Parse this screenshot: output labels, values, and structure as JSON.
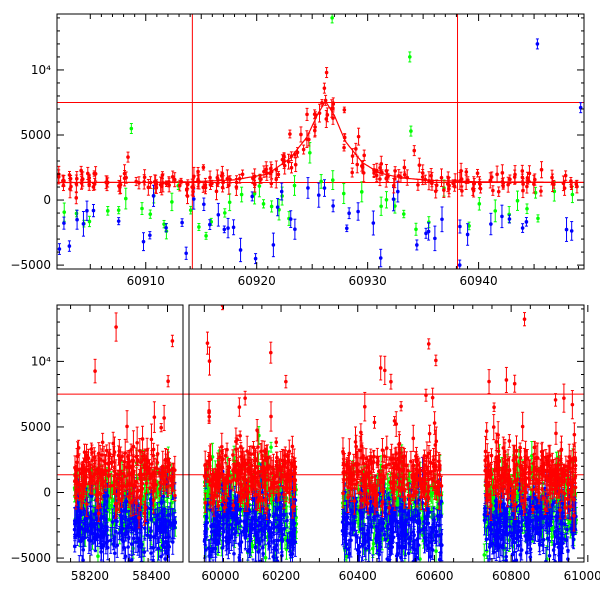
{
  "chart_data": [
    {
      "type": "scatter",
      "panel": "top",
      "title": "",
      "xlabel": "",
      "ylabel": "",
      "xlim": [
        60902,
        60949.5
      ],
      "ylim": [
        -5300,
        14300
      ],
      "x_ticks": [
        60910,
        60920,
        60930,
        60940
      ],
      "x_tick_labels": [
        "60910",
        "60920",
        "60930",
        "60940"
      ],
      "y_ticks": [
        -5000,
        0,
        5000,
        10000
      ],
      "y_tick_labels": [
        "−5000",
        "0",
        "5000",
        "10⁴"
      ],
      "reference_lines": {
        "horizontal": [
          7500,
          1350
        ],
        "vertical": [
          60914.2,
          60938.1
        ]
      },
      "model_curve": {
        "name": "red model",
        "x": [
          60902,
          60910,
          60914,
          60918,
          60921,
          60923,
          60924.5,
          60925.5,
          60926.2,
          60927,
          60928,
          60929.5,
          60931,
          60933,
          60936,
          60940,
          60949.5
        ],
        "y": [
          1350,
          1360,
          1400,
          1550,
          2000,
          3200,
          4800,
          6600,
          7600,
          6500,
          4500,
          2900,
          2100,
          1700,
          1500,
          1400,
          1360
        ]
      },
      "series": [
        {
          "name": "red",
          "color": "#ff0000",
          "description": "dense points around 1500 with peak near 60926"
        },
        {
          "name": "green",
          "color": "#00ff00",
          "description": "points around -800 with scattered outliers"
        },
        {
          "name": "blue",
          "color": "#0000ff",
          "description": "points around -2000 with scattered outliers"
        }
      ],
      "outliers": [
        {
          "series": "green",
          "x": 60908.7,
          "y": 5500
        },
        {
          "series": "green",
          "x": 60933.8,
          "y": 11000
        },
        {
          "series": "green",
          "x": 60933.9,
          "y": 5300
        },
        {
          "series": "green",
          "x": 60926.8,
          "y": 14000
        },
        {
          "series": "blue",
          "x": 60945.3,
          "y": 12000
        },
        {
          "series": "blue",
          "x": 60949.2,
          "y": 7100
        },
        {
          "series": "red",
          "x": 60926.3,
          "y": 9800
        },
        {
          "series": "red",
          "x": 60926.1,
          "y": 8600
        },
        {
          "series": "red",
          "x": 60908.4,
          "y": 3300
        },
        {
          "series": "red",
          "x": 60934.2,
          "y": 3800
        },
        {
          "series": "blue",
          "x": 60919.9,
          "y": -4500
        },
        {
          "series": "blue",
          "x": 60938.3,
          "y": -5000
        }
      ]
    },
    {
      "type": "scatter",
      "panel": "bottom",
      "title": "",
      "xlabel": "",
      "ylabel": "",
      "xlim": [
        58115,
        60990
      ],
      "ylim": [
        -5300,
        14300
      ],
      "x_ticks": [
        58200,
        58400,
        60000,
        60200,
        60400,
        60600,
        60800,
        61000
      ],
      "x_tick_labels": [
        "58200",
        "58400",
        "60000",
        "60200",
        "60400",
        "60600",
        "60800",
        "61000"
      ],
      "y_ticks": [
        -5000,
        0,
        5000,
        10000
      ],
      "y_tick_labels": [
        "−5000",
        "0",
        "5000",
        "10⁴"
      ],
      "broken_axis": {
        "left_segment": [
          58115,
          58440
        ],
        "right_segment": [
          59960,
          60990
        ]
      },
      "reference_lines": {
        "horizontal": [
          7500,
          1350
        ]
      },
      "seasons": [
        [
          58160,
          58420
        ],
        [
          60000,
          60240
        ],
        [
          60360,
          60620
        ],
        [
          60730,
          60970
        ]
      ],
      "series": [
        {
          "name": "red",
          "color": "#ff0000",
          "description": "dense points around 1300 in each season"
        },
        {
          "name": "green",
          "color": "#00ff00",
          "description": "points around -1000 in each season"
        },
        {
          "name": "blue",
          "color": "#0000ff",
          "description": "points around -2500 in each season"
        }
      ]
    }
  ]
}
